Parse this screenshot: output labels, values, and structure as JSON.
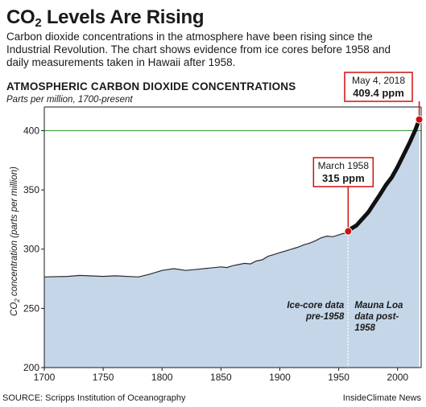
{
  "header": {
    "title_main": "CO",
    "title_sub": "2",
    "title_rest": " Levels Are Rising",
    "subtitle": "Carbon dioxide concentrations in the atmosphere have been rising since the Industrial Revolution. The chart shows evidence from ice cores before 1958 and daily measurements taken in Hawaii after 1958."
  },
  "chart_header": {
    "title": "ATMOSPHERIC CARBON DIOXIDE CONCENTRATIONS",
    "subtitle": "Parts per million, 1700-present"
  },
  "footer": {
    "source": "SOURCE: Scripps Institution of Oceanography",
    "credit": "InsideClimate News"
  },
  "colors": {
    "area_fill": "#c5d6e8",
    "line": "#2b2b2b",
    "reference_line": "#3a9a3a",
    "marker": "#cc1111",
    "callout_border": "#cc1111"
  },
  "chart_data": {
    "type": "area",
    "xlim": [
      1700,
      2020
    ],
    "ylim": [
      200,
      420
    ],
    "x_ticks": [
      1700,
      1750,
      1800,
      1850,
      1900,
      1950,
      2000
    ],
    "y_ticks": [
      200,
      250,
      300,
      350,
      400
    ],
    "ylabel_prefix": "CO",
    "ylabel_sub": "2",
    "ylabel_rest": " concentration (parts per million)",
    "reference_line_value": 400,
    "grid": false,
    "series": [
      {
        "source": "ice-core",
        "x": [
          1700,
          1720,
          1730,
          1750,
          1760,
          1780,
          1790,
          1800,
          1810,
          1820,
          1830,
          1840,
          1850,
          1855,
          1860,
          1865,
          1870,
          1875,
          1880,
          1885,
          1890,
          1895,
          1900,
          1905,
          1910,
          1915,
          1920,
          1925,
          1930,
          1935,
          1940,
          1945,
          1950,
          1953,
          1956,
          1958
        ],
        "y": [
          276.5,
          277,
          277.8,
          277,
          277.5,
          276.5,
          279,
          282,
          283.5,
          282,
          283,
          284,
          285,
          284.5,
          286,
          287,
          288,
          287.5,
          290,
          291,
          294,
          295.5,
          297,
          298.5,
          300,
          301.5,
          303.5,
          305,
          307,
          309.5,
          311,
          310.5,
          312,
          313,
          313.5,
          315
        ]
      },
      {
        "source": "mauna-loa",
        "x": [
          1958,
          1960,
          1965,
          1970,
          1975,
          1980,
          1985,
          1990,
          1995,
          2000,
          2005,
          2010,
          2015,
          2018.33
        ],
        "y": [
          315,
          317,
          320,
          325.5,
          331,
          338.5,
          346,
          354,
          360.5,
          369.5,
          379.5,
          389.5,
          400.5,
          409.4
        ]
      }
    ],
    "divider_x": 1958,
    "divider_labels": {
      "left": [
        "Ice-core data",
        "pre-1958"
      ],
      "right": [
        "Mauna Loa",
        "data post-",
        "1958"
      ]
    },
    "annotations": [
      {
        "x": 1958,
        "y": 315,
        "date": "March 1958",
        "value": "315 ppm"
      },
      {
        "x": 2018.33,
        "y": 409.4,
        "date": "May 4, 2018",
        "value": "409.4 ppm"
      }
    ]
  }
}
